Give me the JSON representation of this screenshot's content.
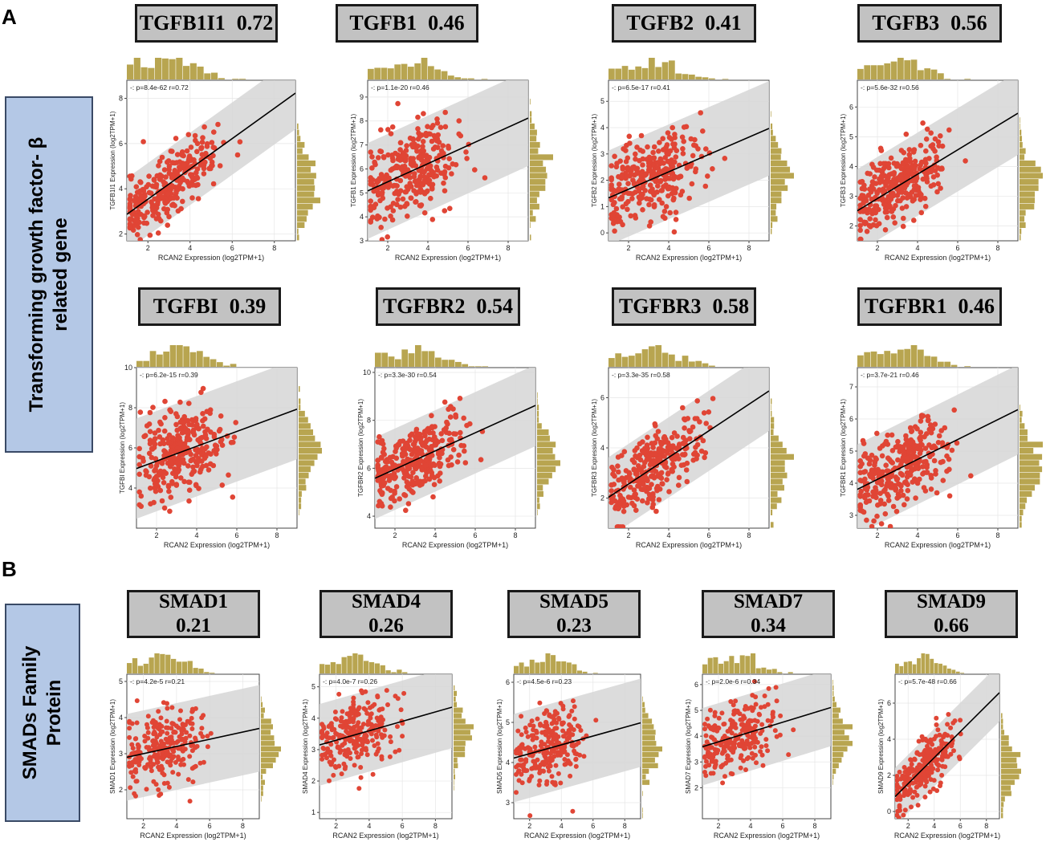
{
  "panels": [
    {
      "letter": "A",
      "side_label_lines": [
        "Transforming growth factor- β",
        "related gene"
      ]
    },
    {
      "letter": "B",
      "side_label_lines": [
        "SMADs Family",
        "Protein"
      ]
    }
  ],
  "colors": {
    "point": "#e04535",
    "hist": "#b8a550",
    "band": "#d6d6d6",
    "line": "#000000",
    "box": "#c2c2c2",
    "side": "#b4c8e6"
  },
  "chart_data": [
    {
      "type": "scatter",
      "gene": "TGFB1I1",
      "r_label": "0.72",
      "stat": "-: p=8.4e-62 r=0.72",
      "xlabel": "RCAN2 Expression (log2TPM+1)",
      "ylabel": "TGFB1I1 Expression (log2TPM+1)",
      "xlim": [
        1,
        9
      ],
      "ylim": [
        1.7,
        8.8
      ],
      "xticks": [
        2,
        4,
        6,
        8
      ],
      "yticks": [
        2,
        4,
        6,
        8
      ],
      "slope": 0.67,
      "intercept": 2.2,
      "band": 1.6,
      "seed": 11
    },
    {
      "type": "scatter",
      "gene": "TGFB1",
      "r_label": "0.46",
      "stat": "-: p=1.1e-20 r=0.46",
      "xlabel": "RCAN2 Expression (log2TPM+1)",
      "ylabel": "TGFB1 Expression (log2TPM+1)",
      "xlim": [
        1,
        9
      ],
      "ylim": [
        3,
        9.7
      ],
      "xticks": [
        2,
        4,
        6,
        8
      ],
      "yticks": [
        3,
        4,
        5,
        6,
        7,
        8,
        9
      ],
      "slope": 0.38,
      "intercept": 4.7,
      "band": 2.0,
      "seed": 23
    },
    {
      "type": "scatter",
      "gene": "TGFB2",
      "r_label": "0.41",
      "stat": "-: p=6.5e-17 r=0.41",
      "xlabel": "RCAN2 Expression (log2TPM+1)",
      "ylabel": "TGFB2 Expression (log2TPM+1)",
      "xlim": [
        1,
        9
      ],
      "ylim": [
        -0.3,
        5.8
      ],
      "xticks": [
        2,
        4,
        6,
        8
      ],
      "yticks": [
        0,
        1,
        2,
        3,
        4,
        5
      ],
      "slope": 0.33,
      "intercept": 1.0,
      "band": 1.8,
      "seed": 37
    },
    {
      "type": "scatter",
      "gene": "TGFB3",
      "r_label": "0.56",
      "stat": "-: p=5.6e-32 r=0.56",
      "xlabel": "RCAN2 Expression (log2TPM+1)",
      "ylabel": "TGFB3 Expression (log2TPM+1)",
      "xlim": [
        1,
        9
      ],
      "ylim": [
        1.5,
        6.9
      ],
      "xticks": [
        2,
        4,
        6,
        8
      ],
      "yticks": [
        2,
        3,
        4,
        5,
        6
      ],
      "slope": 0.41,
      "intercept": 2.1,
      "band": 1.4,
      "seed": 41
    },
    {
      "type": "scatter",
      "gene": "TGFBI",
      "r_label": "0.39",
      "stat": "-: p=6.2e-15 r=0.39",
      "xlabel": "RCAN2 Expression (log2TPM+1)",
      "ylabel": "TGFBI Expression (log2TPM+1)",
      "xlim": [
        1,
        9
      ],
      "ylim": [
        2,
        10
      ],
      "xticks": [
        2,
        4,
        6,
        8
      ],
      "yticks": [
        4,
        6,
        8,
        10
      ],
      "slope": 0.37,
      "intercept": 4.6,
      "band": 2.5,
      "seed": 53
    },
    {
      "type": "scatter",
      "gene": "TGFBR2",
      "r_label": "0.54",
      "stat": "-: p=3.3e-30 r=0.54",
      "xlabel": "RCAN2 Expression (log2TPM+1)",
      "ylabel": "TGFBR2 Expression (log2TPM+1)",
      "xlim": [
        1,
        9
      ],
      "ylim": [
        3.5,
        10.2
      ],
      "xticks": [
        2,
        4,
        6,
        8
      ],
      "yticks": [
        4,
        6,
        8,
        10
      ],
      "slope": 0.38,
      "intercept": 5.2,
      "band": 1.7,
      "seed": 61
    },
    {
      "type": "scatter",
      "gene": "TGFBR3",
      "r_label": "0.58",
      "stat": "-: p=3.3e-35 r=0.58",
      "xlabel": "RCAN2 Expression (log2TPM+1)",
      "ylabel": "TGFBR3 Expression (log2TPM+1)",
      "xlim": [
        1,
        9
      ],
      "ylim": [
        0.8,
        7.2
      ],
      "xticks": [
        2,
        4,
        6,
        8
      ],
      "yticks": [
        2,
        4,
        6
      ],
      "slope": 0.53,
      "intercept": 1.5,
      "band": 1.6,
      "seed": 71
    },
    {
      "type": "scatter",
      "gene": "TGFBR1",
      "r_label": "0.46",
      "stat": "-: p=3.7e-21 r=0.46",
      "xlabel": "RCAN2 Expression (log2TPM+1)",
      "ylabel": "TGFBR1 Expression (log2TPM+1)",
      "xlim": [
        1,
        9
      ],
      "ylim": [
        2.6,
        7.6
      ],
      "xticks": [
        2,
        4,
        6,
        8
      ],
      "yticks": [
        3,
        4,
        5,
        6,
        7
      ],
      "slope": 0.31,
      "intercept": 3.5,
      "band": 1.4,
      "seed": 83
    },
    {
      "type": "scatter",
      "gene": "SMAD1",
      "r_label": "0.21",
      "stat": "-: p=4.2e-5 r=0.21",
      "xlabel": "RCAN2 Expression (log2TPM+1)",
      "ylabel": "SMAD1 Expression (log2TPM+1)",
      "xlim": [
        1,
        9
      ],
      "ylim": [
        1.2,
        5.2
      ],
      "xticks": [
        2,
        4,
        6,
        8
      ],
      "yticks": [
        2,
        3,
        4,
        5
      ],
      "slope": 0.1,
      "intercept": 2.8,
      "band": 1.2,
      "seed": 97
    },
    {
      "type": "scatter",
      "gene": "SMAD4",
      "r_label": "0.26",
      "stat": "-: p=4.0e-7 r=0.26",
      "xlabel": "RCAN2 Expression (log2TPM+1)",
      "ylabel": "SMAD4 Expression (log2TPM+1)",
      "xlim": [
        1,
        9
      ],
      "ylim": [
        0.8,
        5.4
      ],
      "xticks": [
        2,
        4,
        6,
        8
      ],
      "yticks": [
        1,
        2,
        3,
        4,
        5
      ],
      "slope": 0.15,
      "intercept": 3.0,
      "band": 1.3,
      "seed": 103
    },
    {
      "type": "scatter",
      "gene": "SMAD5",
      "r_label": "0.23",
      "stat": "-: p=4.5e-6 r=0.23",
      "xlabel": "RCAN2 Expression (log2TPM+1)",
      "ylabel": "SMAD5 Expression (log2TPM+1)",
      "xlim": [
        1,
        9
      ],
      "ylim": [
        2.6,
        6.2
      ],
      "xticks": [
        2,
        4,
        6,
        8
      ],
      "yticks": [
        3,
        4,
        5,
        6
      ],
      "slope": 0.11,
      "intercept": 4.0,
      "band": 1.1,
      "seed": 113
    },
    {
      "type": "scatter",
      "gene": "SMAD7",
      "r_label": "0.34",
      "stat": "-: p=2.0e-6 r=0.34",
      "xlabel": "RCAN2 Expression (log2TPM+1)",
      "ylabel": "SMAD7 Expression (log2TPM+1)",
      "xlim": [
        1,
        9
      ],
      "ylim": [
        0.8,
        6.4
      ],
      "xticks": [
        2,
        4,
        6,
        8
      ],
      "yticks": [
        2,
        3,
        4,
        5,
        6
      ],
      "slope": 0.19,
      "intercept": 3.4,
      "band": 1.5,
      "seed": 127
    },
    {
      "type": "scatter",
      "gene": "SMAD9",
      "r_label": "0.66",
      "stat": "-: p=5.7e-48 r=0.66",
      "xlabel": "RCAN2 Expression (log2TPM+1)",
      "ylabel": "SMAD9 Expression (log2TPM+1)",
      "xlim": [
        1,
        9
      ],
      "ylim": [
        -0.4,
        7.6
      ],
      "xticks": [
        2,
        4,
        6,
        8
      ],
      "yticks": [
        0,
        2,
        4,
        6
      ],
      "slope": 0.72,
      "intercept": 0.1,
      "band": 1.6,
      "seed": 131
    }
  ]
}
